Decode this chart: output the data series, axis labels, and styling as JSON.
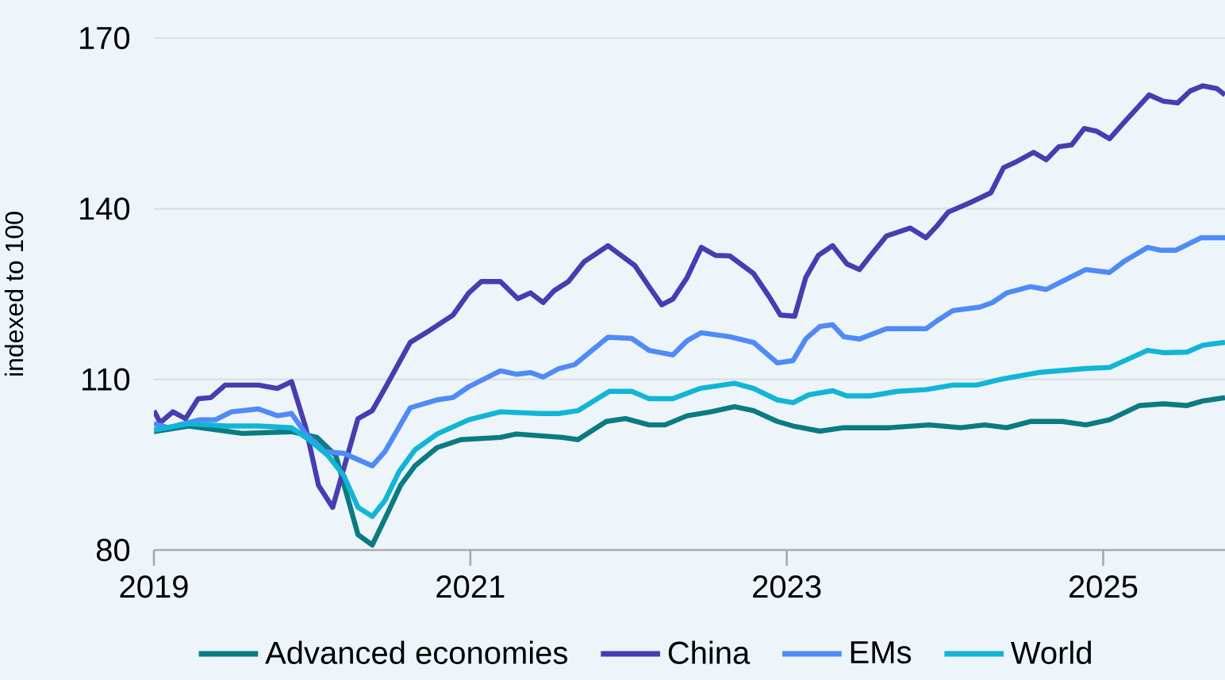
{
  "chart_data": {
    "type": "line",
    "ylabel": "indexed to 100",
    "xlim": [
      2019,
      2025.77
    ],
    "xticks": [
      {
        "value": 2019,
        "label": "2019"
      },
      {
        "value": 2021,
        "label": "2021"
      },
      {
        "value": 2023,
        "label": "2023"
      },
      {
        "value": 2025,
        "label": "2025"
      }
    ],
    "ylim": [
      80,
      170
    ],
    "yticks": [
      80,
      110,
      140,
      170
    ],
    "grid": "y",
    "legend": "bottom",
    "marker": "none",
    "line_style": "solid",
    "series": [
      {
        "name": "Advanced economies",
        "color": "#0a7b83",
        "x": [
          2019,
          2019.22,
          2019.56,
          2019.87,
          2020.03,
          2020.15,
          2020.29,
          2020.38,
          2020.46,
          2020.56,
          2020.65,
          2020.79,
          2020.94,
          2021.19,
          2021.29,
          2021.58,
          2021.68,
          2021.86,
          2021.98,
          2022.13,
          2022.23,
          2022.37,
          2022.52,
          2022.67,
          2022.79,
          2022.94,
          2023.04,
          2023.21,
          2023.36,
          2023.65,
          2023.9,
          2024.1,
          2024.25,
          2024.39,
          2024.54,
          2024.74,
          2024.89,
          2025.04,
          2025.23,
          2025.38,
          2025.53,
          2025.63,
          2025.77
        ],
        "values": [
          100.8,
          101.8,
          100.5,
          100.8,
          99.8,
          96.6,
          82.7,
          80.9,
          85.5,
          91.4,
          94.8,
          98.0,
          99.4,
          99.8,
          100.4,
          99.8,
          99.4,
          102.6,
          103.1,
          102.0,
          102.0,
          103.6,
          104.3,
          105.2,
          104.5,
          102.6,
          101.8,
          100.9,
          101.5,
          101.5,
          102.0,
          101.5,
          102.0,
          101.5,
          102.6,
          102.6,
          102.0,
          102.9,
          105.4,
          105.7,
          105.4,
          106.2,
          106.8
        ]
      },
      {
        "name": "China",
        "color": "#4a3cb0",
        "x": [
          2019,
          2019.04,
          2019.12,
          2019.2,
          2019.28,
          2019.36,
          2019.45,
          2019.66,
          2019.78,
          2019.87,
          2019.96,
          2020.04,
          2020.13,
          2020.29,
          2020.38,
          2020.46,
          2020.62,
          2020.72,
          2020.89,
          2020.99,
          2021.07,
          2021.19,
          2021.3,
          2021.38,
          2021.46,
          2021.53,
          2021.62,
          2021.72,
          2021.87,
          2022.04,
          2022.13,
          2022.21,
          2022.28,
          2022.37,
          2022.46,
          2022.55,
          2022.64,
          2022.79,
          2022.89,
          2022.96,
          2023.05,
          2023.12,
          2023.2,
          2023.29,
          2023.38,
          2023.46,
          2023.53,
          2023.63,
          2023.78,
          2023.88,
          2023.95,
          2024.02,
          2024.17,
          2024.29,
          2024.37,
          2024.44,
          2024.56,
          2024.64,
          2024.72,
          2024.8,
          2024.88,
          2024.96,
          2025.04,
          2025.13,
          2025.29,
          2025.38,
          2025.47,
          2025.55,
          2025.63,
          2025.72,
          2025.77
        ],
        "values": [
          104.5,
          102.4,
          104.3,
          103.1,
          106.6,
          106.8,
          109.0,
          109.0,
          108.4,
          109.6,
          101.5,
          91.4,
          87.5,
          103.1,
          104.5,
          108.4,
          116.5,
          118.2,
          121.3,
          125.2,
          127.2,
          127.2,
          124.2,
          125.2,
          123.5,
          125.6,
          127.2,
          130.7,
          133.5,
          130.0,
          126.3,
          123.1,
          124.1,
          127.9,
          133.2,
          131.8,
          131.7,
          128.6,
          124.5,
          121.3,
          121.1,
          127.9,
          131.8,
          133.5,
          130.3,
          129.3,
          131.8,
          135.2,
          136.6,
          134.9,
          137.0,
          139.4,
          141.2,
          142.8,
          147.2,
          148.1,
          149.9,
          148.6,
          150.9,
          151.2,
          154.1,
          153.6,
          152.3,
          155.1,
          160.0,
          158.9,
          158.6,
          160.7,
          161.6,
          161.1,
          160.0
        ]
      },
      {
        "name": "EMs",
        "color": "#4f8af7",
        "x": [
          2019,
          2019.09,
          2019.29,
          2019.39,
          2019.49,
          2019.66,
          2019.78,
          2019.87,
          2019.96,
          2020.08,
          2020.2,
          2020.38,
          2020.46,
          2020.62,
          2020.79,
          2020.89,
          2020.99,
          2021.09,
          2021.19,
          2021.29,
          2021.38,
          2021.46,
          2021.56,
          2021.66,
          2021.87,
          2022.02,
          2022.13,
          2022.28,
          2022.37,
          2022.46,
          2022.64,
          2022.79,
          2022.94,
          2023.04,
          2023.12,
          2023.21,
          2023.29,
          2023.36,
          2023.46,
          2023.63,
          2023.88,
          2023.95,
          2024.05,
          2024.22,
          2024.3,
          2024.39,
          2024.54,
          2024.64,
          2024.74,
          2024.89,
          2025.04,
          2025.13,
          2025.28,
          2025.36,
          2025.46,
          2025.62,
          2025.77
        ],
        "values": [
          102.2,
          101.5,
          102.9,
          102.9,
          104.3,
          104.8,
          103.6,
          104.0,
          100.4,
          97.3,
          97.0,
          94.8,
          97.3,
          105.0,
          106.4,
          106.8,
          108.7,
          110.1,
          111.5,
          110.9,
          111.2,
          110.4,
          111.9,
          112.6,
          117.4,
          117.2,
          115.1,
          114.3,
          116.8,
          118.2,
          117.5,
          116.5,
          112.9,
          113.3,
          117.1,
          119.3,
          119.6,
          117.5,
          117.1,
          118.9,
          118.9,
          120.3,
          122.1,
          122.7,
          123.5,
          125.2,
          126.3,
          125.8,
          127.2,
          129.3,
          128.8,
          130.7,
          133.2,
          132.7,
          132.7,
          134.9,
          134.9
        ]
      },
      {
        "name": "World",
        "color": "#12b5d6",
        "x": [
          2019,
          2019.22,
          2019.46,
          2019.66,
          2019.87,
          2019.98,
          2020.1,
          2020.2,
          2020.29,
          2020.38,
          2020.46,
          2020.55,
          2020.65,
          2020.79,
          2020.99,
          2021.19,
          2021.44,
          2021.56,
          2021.68,
          2021.88,
          2022.02,
          2022.13,
          2022.28,
          2022.45,
          2022.67,
          2022.79,
          2022.94,
          2023.04,
          2023.14,
          2023.29,
          2023.38,
          2023.53,
          2023.7,
          2023.88,
          2024.05,
          2024.2,
          2024.37,
          2024.59,
          2024.89,
          2025.04,
          2025.28,
          2025.38,
          2025.53,
          2025.63,
          2025.77
        ],
        "values": [
          101.1,
          102.2,
          101.8,
          101.8,
          101.5,
          99.4,
          96.6,
          93.1,
          87.5,
          85.9,
          88.7,
          93.8,
          97.6,
          100.4,
          102.9,
          104.3,
          104.0,
          104.0,
          104.5,
          107.9,
          107.9,
          106.6,
          106.6,
          108.4,
          109.3,
          108.4,
          106.4,
          105.9,
          107.3,
          108.0,
          107.1,
          107.1,
          107.9,
          108.2,
          109.0,
          109.0,
          110.1,
          111.2,
          111.9,
          112.1,
          115.1,
          114.7,
          114.8,
          116.0,
          116.5
        ]
      }
    ]
  }
}
